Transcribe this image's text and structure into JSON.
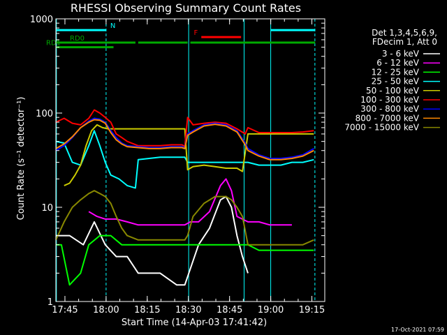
{
  "chart_data": {
    "type": "line",
    "title": "RHESSI Observing Summary Count Rates",
    "xlabel": "Start Time (14-Apr-03 17:41:42)",
    "ylabel": "Count Rate (s⁻¹ detector⁻¹)",
    "y_scale": "log",
    "ylim": [
      1,
      1000
    ],
    "xlim_minutes": [
      0,
      98
    ],
    "x_ticks": [
      {
        "label": "17:45",
        "minute": 3.3
      },
      {
        "label": "18:00",
        "minute": 18.3
      },
      {
        "label": "18:15",
        "minute": 33.3
      },
      {
        "label": "18:30",
        "minute": 48.3
      },
      {
        "label": "18:45",
        "minute": 63.3
      },
      {
        "label": "19:00",
        "minute": 78.3
      },
      {
        "label": "19:15",
        "minute": 93.3
      }
    ],
    "y_ticks": [
      {
        "label": "1",
        "value": 1
      },
      {
        "label": "10",
        "value": 10
      },
      {
        "label": "100",
        "value": 100
      },
      {
        "label": "1000",
        "value": 1000
      }
    ],
    "legend_header": [
      "Det 1,3,4,5,6,9,",
      "FDecim 1, Att 0"
    ],
    "series": [
      {
        "name": "3 - 6 keV",
        "color": "#ffffff",
        "points": [
          [
            0,
            5
          ],
          [
            5,
            5
          ],
          [
            10,
            4
          ],
          [
            14,
            7
          ],
          [
            18,
            4
          ],
          [
            22,
            3
          ],
          [
            26,
            3
          ],
          [
            30,
            2
          ],
          [
            34,
            2
          ],
          [
            38,
            2
          ],
          [
            44,
            1.5
          ],
          [
            47,
            1.5
          ],
          [
            52,
            4
          ],
          [
            56,
            6
          ],
          [
            60,
            12
          ],
          [
            62,
            13
          ],
          [
            64,
            10
          ],
          [
            66,
            5
          ],
          [
            68,
            3
          ],
          [
            70,
            2
          ]
        ]
      },
      {
        "name": "6 - 12 keV",
        "color": "#ff00ff",
        "points": [
          [
            12,
            9
          ],
          [
            15,
            8
          ],
          [
            18,
            7.5
          ],
          [
            22,
            7.5
          ],
          [
            26,
            7
          ],
          [
            30,
            6.5
          ],
          [
            34,
            6.5
          ],
          [
            38,
            6.5
          ],
          [
            44,
            6.5
          ],
          [
            47,
            6.5
          ],
          [
            49,
            7
          ],
          [
            52,
            7
          ],
          [
            56,
            9
          ],
          [
            60,
            17
          ],
          [
            62,
            20
          ],
          [
            64,
            15
          ],
          [
            66,
            8
          ],
          [
            70,
            7
          ],
          [
            74,
            7
          ],
          [
            78,
            6.5
          ],
          [
            84,
            6.5
          ],
          [
            86,
            6.5
          ]
        ]
      },
      {
        "name": "12 - 25 keV",
        "color": "#00ff00",
        "points": [
          [
            0,
            4
          ],
          [
            2,
            4
          ],
          [
            5,
            1.5
          ],
          [
            9,
            2
          ],
          [
            12,
            4
          ],
          [
            16,
            5
          ],
          [
            20,
            5
          ],
          [
            24,
            4
          ],
          [
            28,
            4
          ],
          [
            32,
            4
          ],
          [
            36,
            4
          ],
          [
            40,
            4
          ],
          [
            44,
            4
          ],
          [
            47,
            4
          ],
          [
            50,
            4
          ],
          [
            54,
            4
          ],
          [
            58,
            4
          ],
          [
            62,
            4
          ],
          [
            66,
            4
          ],
          [
            70,
            4
          ],
          [
            74,
            3.5
          ],
          [
            78,
            3.5
          ],
          [
            84,
            3.5
          ],
          [
            90,
            3.5
          ],
          [
            94,
            3.5
          ]
        ]
      },
      {
        "name": "25 - 50 keV",
        "color": "#00ffff",
        "points": [
          [
            0,
            50
          ],
          [
            3,
            48
          ],
          [
            6,
            30
          ],
          [
            9,
            28
          ],
          [
            12,
            45
          ],
          [
            14,
            65
          ],
          [
            16,
            45
          ],
          [
            18,
            30
          ],
          [
            20,
            22
          ],
          [
            23,
            20
          ],
          [
            26,
            17
          ],
          [
            29,
            16
          ],
          [
            30,
            32
          ],
          [
            34,
            33
          ],
          [
            38,
            34
          ],
          [
            42,
            34
          ],
          [
            46,
            34
          ],
          [
            47,
            34
          ],
          [
            48,
            30
          ],
          [
            52,
            30
          ],
          [
            56,
            30
          ],
          [
            60,
            30
          ],
          [
            64,
            30
          ],
          [
            66,
            30
          ],
          [
            70,
            30
          ],
          [
            74,
            28
          ],
          [
            78,
            28
          ],
          [
            82,
            28
          ],
          [
            86,
            30
          ],
          [
            90,
            30
          ],
          [
            94,
            32
          ]
        ]
      },
      {
        "name": "50 - 100 keV",
        "color": "#cccc00",
        "points": [
          [
            3,
            17
          ],
          [
            5,
            18
          ],
          [
            7,
            22
          ],
          [
            9,
            28
          ],
          [
            11,
            45
          ],
          [
            13,
            65
          ],
          [
            15,
            75
          ],
          [
            17,
            70
          ],
          [
            19,
            68
          ],
          [
            22,
            68
          ],
          [
            26,
            68
          ],
          [
            30,
            68
          ],
          [
            34,
            68
          ],
          [
            38,
            68
          ],
          [
            42,
            68
          ],
          [
            46,
            68
          ],
          [
            47,
            68
          ],
          [
            48,
            25
          ],
          [
            50,
            27
          ],
          [
            54,
            28
          ],
          [
            58,
            27
          ],
          [
            62,
            26
          ],
          [
            66,
            26
          ],
          [
            68,
            24
          ],
          [
            70,
            60
          ],
          [
            74,
            60
          ],
          [
            78,
            60
          ],
          [
            82,
            60
          ],
          [
            86,
            60
          ],
          [
            90,
            60
          ],
          [
            94,
            60
          ]
        ]
      },
      {
        "name": "100 - 300 keV",
        "color": "#ff0000",
        "points": [
          [
            0,
            80
          ],
          [
            3,
            88
          ],
          [
            6,
            78
          ],
          [
            9,
            75
          ],
          [
            12,
            88
          ],
          [
            14,
            108
          ],
          [
            16,
            100
          ],
          [
            18,
            90
          ],
          [
            20,
            80
          ],
          [
            22,
            60
          ],
          [
            24,
            55
          ],
          [
            26,
            50
          ],
          [
            30,
            45
          ],
          [
            34,
            45
          ],
          [
            38,
            45
          ],
          [
            42,
            46
          ],
          [
            46,
            46
          ],
          [
            47,
            44
          ],
          [
            48,
            90
          ],
          [
            50,
            75
          ],
          [
            54,
            78
          ],
          [
            58,
            80
          ],
          [
            62,
            78
          ],
          [
            66,
            68
          ],
          [
            69,
            60
          ],
          [
            70,
            70
          ],
          [
            74,
            62
          ],
          [
            78,
            62
          ],
          [
            82,
            62
          ],
          [
            86,
            62
          ],
          [
            90,
            63
          ],
          [
            94,
            65
          ]
        ]
      },
      {
        "name": "300 - 800 keV",
        "color": "#0000ff",
        "points": [
          [
            0,
            40
          ],
          [
            3,
            45
          ],
          [
            6,
            55
          ],
          [
            9,
            70
          ],
          [
            12,
            82
          ],
          [
            14,
            88
          ],
          [
            16,
            86
          ],
          [
            18,
            80
          ],
          [
            20,
            65
          ],
          [
            22,
            55
          ],
          [
            24,
            48
          ],
          [
            26,
            45
          ],
          [
            30,
            44
          ],
          [
            34,
            43
          ],
          [
            38,
            43
          ],
          [
            42,
            44
          ],
          [
            46,
            44
          ],
          [
            47,
            43
          ],
          [
            48,
            60
          ],
          [
            50,
            65
          ],
          [
            54,
            75
          ],
          [
            58,
            78
          ],
          [
            62,
            75
          ],
          [
            66,
            65
          ],
          [
            69,
            48
          ],
          [
            70,
            42
          ],
          [
            74,
            36
          ],
          [
            78,
            33
          ],
          [
            82,
            33
          ],
          [
            86,
            34
          ],
          [
            90,
            36
          ],
          [
            94,
            42
          ]
        ]
      },
      {
        "name": "800 - 7000 keV",
        "color": "#ff8800",
        "points": [
          [
            0,
            42
          ],
          [
            3,
            47
          ],
          [
            6,
            56
          ],
          [
            9,
            70
          ],
          [
            12,
            80
          ],
          [
            14,
            85
          ],
          [
            16,
            84
          ],
          [
            18,
            78
          ],
          [
            20,
            62
          ],
          [
            22,
            52
          ],
          [
            24,
            47
          ],
          [
            26,
            44
          ],
          [
            30,
            43
          ],
          [
            34,
            42
          ],
          [
            38,
            42
          ],
          [
            42,
            43
          ],
          [
            46,
            43
          ],
          [
            47,
            42
          ],
          [
            48,
            58
          ],
          [
            50,
            63
          ],
          [
            54,
            73
          ],
          [
            58,
            76
          ],
          [
            62,
            73
          ],
          [
            66,
            63
          ],
          [
            69,
            46
          ],
          [
            70,
            40
          ],
          [
            74,
            35
          ],
          [
            78,
            32
          ],
          [
            82,
            32
          ],
          [
            86,
            33
          ],
          [
            90,
            35
          ],
          [
            94,
            40
          ]
        ]
      },
      {
        "name": "7000 - 15000 keV",
        "color": "#888800",
        "points": [
          [
            0,
            4.5
          ],
          [
            3,
            7
          ],
          [
            6,
            10
          ],
          [
            9,
            12
          ],
          [
            12,
            14
          ],
          [
            14,
            15
          ],
          [
            16,
            14
          ],
          [
            18,
            13
          ],
          [
            20,
            11
          ],
          [
            22,
            8
          ],
          [
            24,
            6
          ],
          [
            26,
            5
          ],
          [
            30,
            4.5
          ],
          [
            34,
            4.5
          ],
          [
            38,
            4.5
          ],
          [
            42,
            4.5
          ],
          [
            46,
            4.5
          ],
          [
            47,
            4.5
          ],
          [
            48,
            5
          ],
          [
            50,
            8
          ],
          [
            54,
            11
          ],
          [
            58,
            13
          ],
          [
            62,
            13
          ],
          [
            64,
            12
          ],
          [
            66,
            10
          ],
          [
            68,
            8
          ],
          [
            70,
            4
          ],
          [
            74,
            4
          ],
          [
            78,
            4
          ],
          [
            82,
            4
          ],
          [
            86,
            4
          ],
          [
            90,
            4
          ],
          [
            94,
            4.5
          ]
        ]
      }
    ],
    "flags": [
      {
        "label": "N",
        "color": "#00ffff",
        "y_value": 760,
        "segments": [
          [
            0,
            18.3
          ],
          [
            78.3,
            94.5
          ]
        ]
      },
      {
        "label": "F",
        "color": "#ff0000",
        "y_value": 640,
        "segments": [
          [
            53,
            67.5
          ]
        ]
      },
      {
        "label": "RD0",
        "color": "#00aa00",
        "y_value": 560,
        "segments": [
          [
            0,
            29
          ],
          [
            30,
            48
          ],
          [
            49,
            70
          ],
          [
            70,
            94.5
          ]
        ]
      },
      {
        "label": "RD1",
        "color": "#00aa00",
        "y_value": 500,
        "segments": [
          [
            0,
            21
          ]
        ]
      }
    ],
    "vlines": [
      {
        "minute": 0.2,
        "style": "solid"
      },
      {
        "minute": 18.3,
        "style": "dashed"
      },
      {
        "minute": 48.4,
        "style": "solid"
      },
      {
        "minute": 68.6,
        "style": "solid"
      },
      {
        "minute": 78.3,
        "style": "solid"
      },
      {
        "minute": 94.4,
        "style": "dashed"
      }
    ],
    "footer": "17-Oct-2021 07:59"
  }
}
